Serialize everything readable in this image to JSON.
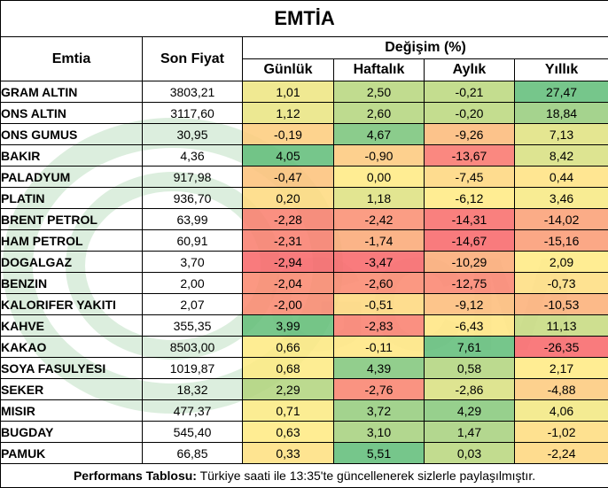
{
  "title": "EMTİA",
  "headers": {
    "commodity": "Emtia",
    "price": "Son Fiyat",
    "change_group": "Değişim (%)",
    "daily": "Günlük",
    "weekly": "Haftalık",
    "monthly": "Aylık",
    "yearly": "Yıllık"
  },
  "rows": [
    {
      "name": "GRAM ALTIN",
      "price": "3803,21",
      "daily": "1,01",
      "weekly": "2,50",
      "monthly": "-0,21",
      "yearly": "27,47"
    },
    {
      "name": "ONS ALTIN",
      "price": "3117,60",
      "daily": "1,12",
      "weekly": "2,60",
      "monthly": "-0,20",
      "yearly": "18,84"
    },
    {
      "name": "ONS GUMUS",
      "price": "30,95",
      "daily": "-0,19",
      "weekly": "4,67",
      "monthly": "-9,26",
      "yearly": "7,13"
    },
    {
      "name": "BAKIR",
      "price": "4,36",
      "daily": "4,05",
      "weekly": "-0,90",
      "monthly": "-13,67",
      "yearly": "8,42"
    },
    {
      "name": "PALADYUM",
      "price": "917,98",
      "daily": "-0,47",
      "weekly": "0,00",
      "monthly": "-7,45",
      "yearly": "0,44"
    },
    {
      "name": "PLATIN",
      "price": "936,70",
      "daily": "0,20",
      "weekly": "1,18",
      "monthly": "-6,12",
      "yearly": "3,46"
    },
    {
      "name": "BRENT PETROL",
      "price": "63,99",
      "daily": "-2,28",
      "weekly": "-2,42",
      "monthly": "-14,31",
      "yearly": "-14,02"
    },
    {
      "name": "HAM PETROL",
      "price": "60,91",
      "daily": "-2,31",
      "weekly": "-1,74",
      "monthly": "-14,67",
      "yearly": "-15,16"
    },
    {
      "name": "DOGALGAZ",
      "price": "3,70",
      "daily": "-2,94",
      "weekly": "-3,47",
      "monthly": "-10,29",
      "yearly": "2,09"
    },
    {
      "name": "BENZIN",
      "price": "2,00",
      "daily": "-2,04",
      "weekly": "-2,60",
      "monthly": "-12,75",
      "yearly": "-0,73"
    },
    {
      "name": "KALORIFER YAKITI",
      "price": "2,07",
      "daily": "-2,00",
      "weekly": "-0,51",
      "monthly": "-9,12",
      "yearly": "-10,53"
    },
    {
      "name": "KAHVE",
      "price": "355,35",
      "daily": "3,99",
      "weekly": "-2,83",
      "monthly": "-6,43",
      "yearly": "11,13"
    },
    {
      "name": "KAKAO",
      "price": "8503,00",
      "daily": "0,66",
      "weekly": "-0,11",
      "monthly": "7,61",
      "yearly": "-26,35"
    },
    {
      "name": "SOYA FASULYESI",
      "price": "1019,87",
      "daily": "0,68",
      "weekly": "4,39",
      "monthly": "0,58",
      "yearly": "2,17"
    },
    {
      "name": "SEKER",
      "price": "18,32",
      "daily": "2,29",
      "weekly": "-2,76",
      "monthly": "-2,86",
      "yearly": "-4,88"
    },
    {
      "name": "MISIR",
      "price": "477,37",
      "daily": "0,71",
      "weekly": "3,72",
      "monthly": "4,29",
      "yearly": "4,06"
    },
    {
      "name": "BUGDAY",
      "price": "545,40",
      "daily": "0,63",
      "weekly": "3,10",
      "monthly": "1,47",
      "yearly": "-1,02"
    },
    {
      "name": "PAMUK",
      "price": "66,85",
      "daily": "0,33",
      "weekly": "5,51",
      "monthly": "0,03",
      "yearly": "-2,24"
    }
  ],
  "footer": {
    "label": "Performans Tablosu:",
    "text": " Türkiye saati ile 13:35'te güncellenerek sizlerle paylaşılmıştır."
  },
  "colors": {
    "green_dark": "#63be7b",
    "yellow": "#ffeb84",
    "red_dark": "#f8696b"
  },
  "watermark": {
    "text": "GCM"
  }
}
